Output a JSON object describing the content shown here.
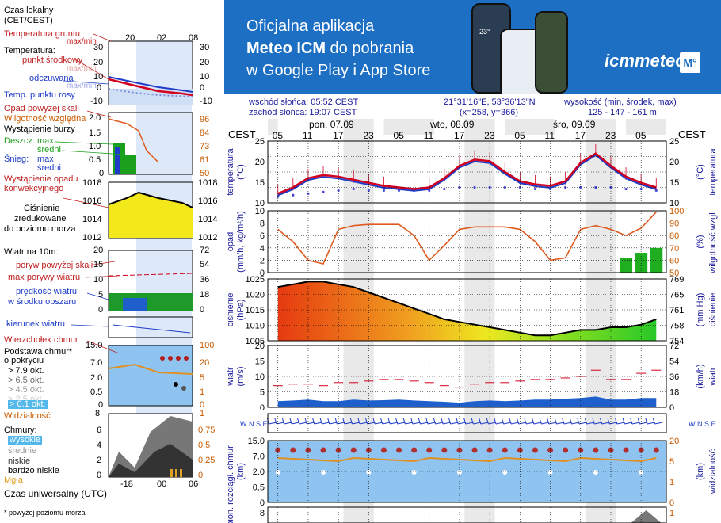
{
  "banner": {
    "line1": "Oficjalna aplikacja",
    "line2_bold": "Meteo ICM",
    "line2_rest": " do pobrania",
    "line3": "w Google Play i App Store",
    "logo": "icmmeteo",
    "logo_badge": "M°",
    "phone_time": "23°",
    "bg_color": "#1d6fc4"
  },
  "header": {
    "sunrise": "wschód słońca: 05:52 CEST",
    "sunset": "zachód słońca: 19:07 CEST",
    "coords": "21°31'16\"E, 53°36'13\"N",
    "grid": "(x=258,  y=366)",
    "alt_label": "wysokość (min, środek, max)",
    "alt_values": "125 - 147 - 161 m"
  },
  "time_axis": {
    "tz_left": "CEST",
    "tz_right": "CEST",
    "days": [
      "pon, 07.09",
      "wto, 08.09",
      "śro, 09.09"
    ],
    "hours": [
      "05",
      "11",
      "17",
      "23",
      "05",
      "11",
      "17",
      "23",
      "05",
      "11",
      "17",
      "23",
      "05"
    ]
  },
  "legend": {
    "time_title1": "Czas lokalny",
    "time_title2": "(CET/CEST)",
    "time_ticks": [
      "20",
      "02",
      "08"
    ],
    "ut_label": "Czas uniwersalny (UTC)",
    "ut_ticks": [
      "-18",
      "00",
      "06"
    ],
    "footnote": "* powyżej poziomu morza",
    "temp": {
      "ground": "Temperatura gruntu",
      "ground_mm": "max/min",
      "title": "Temperatura:",
      "mid": "punkt środkowy",
      "maxmin1": "max/min",
      "feels": "odczuwana",
      "maxmin2": "max/min",
      "dew": "Temp. punktu rosy",
      "ticks_left": [
        "30",
        "20",
        "10",
        "0",
        "-10"
      ],
      "ticks_right": [
        "30",
        "20",
        "10",
        "0",
        "-10"
      ]
    },
    "precip": {
      "above": "Opad powyżej skali",
      "humidity": "Wilgotność względna",
      "storm": "Wystąpienie burzy",
      "rain": "Deszcz:",
      "rain_max": "max",
      "rain_mid": "średni",
      "snow": "Śnieg:",
      "snow_max": "max",
      "snow_mid": "średni",
      "occurrence1": "Wystąpienie opadu",
      "occurrence2": "konwekcyjnego",
      "ticks_left": [
        "2.0",
        "1.5",
        "1.0",
        "0.5",
        "0"
      ],
      "ticks_right": [
        "96",
        "84",
        "73",
        "61",
        "50"
      ]
    },
    "pressure": {
      "l1": "Ciśnienie",
      "l2": "zredukowane",
      "l3": "do poziomu morza",
      "ticks_left": [
        "1018",
        "1016",
        "1014",
        "1012"
      ],
      "ticks_right": [
        "1018",
        "1016",
        "1014",
        "1012"
      ]
    },
    "wind": {
      "title": "Wiatr na 10m:",
      "gust_above": "poryw powyżej skali",
      "gust_max": "max porywy wiatru",
      "speed1": "prędkość wiatru",
      "speed2": "w środku obszaru",
      "ticks_left": [
        "20",
        "15",
        "10",
        "5",
        "0"
      ],
      "ticks_right": [
        "72",
        "54",
        "36",
        "18",
        "0"
      ],
      "direction": "kierunek wiatru"
    },
    "clouds": {
      "top": "Wierzchołek chmur",
      "base1": "Podstawa chmur*",
      "base2": "o pokryciu",
      "o1": "> 7.9 okt.",
      "o2": "> 6.5 okt.",
      "o3": "> 4.5 okt.",
      "o4": "> 2.5 okt.",
      "o5": "> 0.1 okt.",
      "visibility": "Widzialność",
      "ticks_left": [
        "15.0",
        "7.0",
        "2.0",
        "0.5",
        "0"
      ],
      "ticks_right": [
        "100",
        "20",
        "5",
        "1",
        "0"
      ],
      "ticks_vis": [
        "8",
        "1"
      ]
    },
    "cloudcover": {
      "title": "Chmury:",
      "high": "wysokie",
      "mid": "średnie",
      "low": "niskie",
      "vlow": "bardzo niskie",
      "fog": "Mgła",
      "ticks_left": [
        "6",
        "4",
        "2",
        "0"
      ],
      "ticks_right": [
        "0.75",
        "0.5",
        "0.25",
        "0"
      ]
    }
  },
  "axes": {
    "temp": {
      "label": "temperatura",
      "unit": "(°C)",
      "ticks": [
        "25",
        "20",
        "15",
        "10"
      ]
    },
    "precip": {
      "label": "opad",
      "unit": "(mm/h, kg/m²/h)",
      "label_r": "wilgotność wzgl.",
      "unit_r": "(%)",
      "ticks": [
        "10",
        "8",
        "6",
        "4",
        "2",
        "0"
      ],
      "ticks_r": [
        "100",
        "90",
        "80",
        "70",
        "60",
        "50"
      ]
    },
    "pressure": {
      "label": "ciśnienie",
      "unit": "(hPa)",
      "label_r": "ciśnienie",
      "unit_r": "(mm Hg)",
      "ticks": [
        "1025",
        "1020",
        "1015",
        "1010",
        "1005"
      ],
      "ticks_r": [
        "769",
        "765",
        "761",
        "758",
        "754"
      ]
    },
    "wind": {
      "label": "wiatr",
      "unit": "(m/s)",
      "label_r": "wiatr",
      "unit_r": "(km/h)",
      "ticks": [
        "20",
        "15",
        "10",
        "5",
        "0"
      ],
      "ticks_r": [
        "72",
        "54",
        "36",
        "18",
        "0"
      ]
    },
    "clouds": {
      "label": "pion. rozciągł. chmur",
      "unit": "(km)",
      "label_r": "widzialność",
      "unit_r": "(km)",
      "ticks": [
        "15.0",
        "7.0",
        "2.0",
        "0.5",
        "0"
      ],
      "ticks_r": [
        "20",
        "5",
        "1",
        "0"
      ]
    },
    "bottom": {
      "ticks": [
        "8"
      ],
      "ticks_r": [
        "1"
      ]
    },
    "compass_left": "W N S E",
    "compass_right": "W N S E"
  },
  "chart_data": {
    "type": "line",
    "x_hours_from_05_mon": [
      0,
      3,
      6,
      9,
      12,
      15,
      18,
      21,
      24,
      27,
      30,
      33,
      36,
      39,
      42,
      45,
      48,
      51,
      54,
      57,
      60,
      63,
      66,
      69,
      72,
      75
    ],
    "temperature_C": [
      11,
      13,
      16,
      17,
      16.5,
      15.5,
      14.5,
      13.5,
      13,
      12.5,
      13,
      16,
      20,
      22,
      21.5,
      18,
      15,
      14,
      13.5,
      15,
      21,
      24,
      20,
      16.5,
      14.5,
      13
    ],
    "dew_point_C": [
      10,
      10.5,
      11,
      11.5,
      12,
      12.5,
      12,
      12,
      12,
      12,
      12,
      12.5,
      13,
      13,
      13,
      13,
      13,
      12.5,
      12.5,
      13,
      13,
      13,
      13,
      12.5,
      12.5,
      12
    ],
    "humidity_pct": [
      85,
      75,
      60,
      57,
      85,
      88,
      89,
      89,
      89,
      80,
      60,
      72,
      85,
      87,
      87,
      87,
      85,
      75,
      60,
      62,
      85,
      88,
      85,
      80,
      86,
      99
    ],
    "precip_mm_h": [
      0,
      0,
      0,
      0,
      0,
      0,
      0,
      0,
      0,
      0,
      0,
      0,
      0,
      0,
      0,
      0,
      0,
      0,
      0,
      0,
      0,
      0,
      0,
      1.5,
      2,
      2.5
    ],
    "pressure_hPa": [
      1023,
      1024,
      1025,
      1025,
      1024,
      1023,
      1021,
      1019,
      1017,
      1015,
      1013,
      1011,
      1010,
      1009,
      1008,
      1007,
      1006,
      1005,
      1005,
      1006,
      1007,
      1007,
      1008,
      1008,
      1009,
      1011
    ],
    "wind_ms": [
      2,
      2.2,
      2.5,
      2,
      2,
      2.5,
      2.2,
      2.3,
      2.5,
      2.2,
      2,
      1.8,
      1.5,
      2,
      2.2,
      2,
      2.2,
      2.5,
      2.5,
      2.8,
      3,
      3.5,
      2.5,
      2.5,
      3,
      3
    ],
    "gust_ms": [
      7,
      7.5,
      7.5,
      7,
      8,
      8,
      8.5,
      9,
      9,
      8.5,
      8,
      7,
      6.5,
      7.5,
      8,
      8,
      8.5,
      9,
      9,
      9.5,
      10,
      12,
      9,
      9,
      11,
      12
    ],
    "ylim_temp": [
      8,
      28
    ],
    "ylim_precip": [
      0,
      10
    ],
    "ylim_pressure": [
      1003,
      1026
    ],
    "ylim_wind": [
      0,
      20
    ]
  },
  "colors": {
    "temp_line": "#d2001e",
    "dew_dots": "#4a4adc",
    "humidity_line": "#e05a1e",
    "precip_bar": "#1fae1f",
    "wind_fill": "#1e5fcc",
    "gust_line": "#d2001e",
    "tick_red": "#c02020",
    "tick_orange": "#c85a00"
  }
}
